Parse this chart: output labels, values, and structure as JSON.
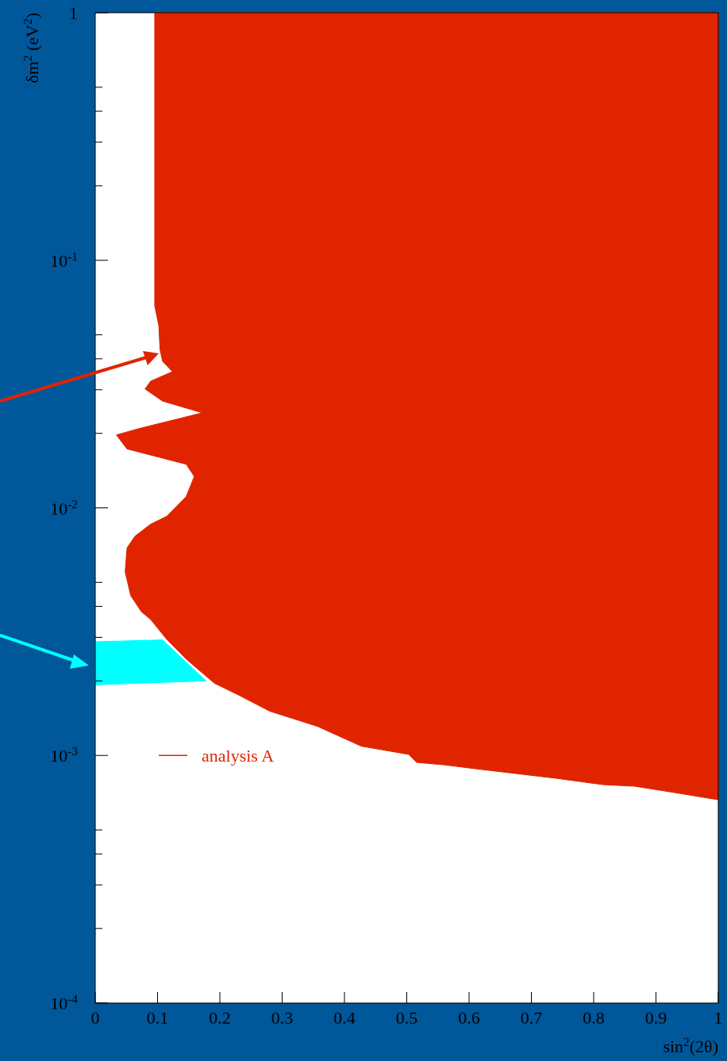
{
  "chart_data": {
    "type": "area",
    "xlabel": "sin$^{2}$(2θ)",
    "ylabel": "δm$^{2}$ (eV$^{2}$)",
    "log": "y",
    "xlim": [
      0,
      1
    ],
    "ylim": [
      0.0001,
      1
    ],
    "xticks": [
      0,
      0.1,
      0.2,
      0.3,
      0.4,
      0.5,
      0.6,
      0.7,
      0.8,
      0.9,
      1
    ],
    "yticks": [
      {
        "value": 0.0001,
        "label": "10$^{-4}$"
      },
      {
        "value": 0.0002,
        "label": null
      },
      {
        "value": 0.0003,
        "label": null
      },
      {
        "value": 0.0004,
        "label": null
      },
      {
        "value": 0.0005,
        "label": null
      },
      {
        "value": 0.001,
        "label": "10$^{-3}$"
      },
      {
        "value": 0.002,
        "label": null
      },
      {
        "value": 0.003,
        "label": null
      },
      {
        "value": 0.004,
        "label": null
      },
      {
        "value": 0.005,
        "label": null
      },
      {
        "value": 0.01,
        "label": "10$^{-2}$"
      },
      {
        "value": 0.02,
        "label": null
      },
      {
        "value": 0.03,
        "label": null
      },
      {
        "value": 0.04,
        "label": null
      },
      {
        "value": 0.05,
        "label": null
      },
      {
        "value": 0.1,
        "label": "10$^{-1}$"
      },
      {
        "value": 0.2,
        "label": null
      },
      {
        "value": 0.3,
        "label": null
      },
      {
        "value": 0.4,
        "label": null
      },
      {
        "value": 0.5,
        "label": null
      },
      1
    ],
    "grid": false,
    "legend": "left",
    "series": [
      {
        "color": "#00ffff",
        "x": [
          0,
          0.108,
          0.178,
          0
        ],
        "values": [
          0.00288,
          0.00293,
          0.002,
          0.00193
        ]
      },
      {
        "name": "analysis A",
        "color": "#e02400",
        "x": [
          0.0955,
          0.0955,
          0.102,
          0.104,
          0.108,
          0.124,
          0.089,
          0.08,
          0.108,
          0.172,
          0.07,
          0.034,
          0.051,
          0.146,
          0.159,
          0.146,
          0.115,
          0.089,
          0.064,
          0.051,
          0.048,
          0.057,
          0.074,
          0.089,
          0.115,
          0.146,
          0.191,
          0.229,
          0.28,
          0.357,
          0.427,
          0.503,
          0.516,
          0.561,
          0.611,
          0.739,
          0.815,
          0.866,
          0.93,
          1,
          1
        ],
        "values": [
          1,
          0.0655,
          0.0545,
          0.0436,
          0.0391,
          0.0355,
          0.0325,
          0.0302,
          0.027,
          0.0242,
          0.0209,
          0.0197,
          0.0173,
          0.015,
          0.0134,
          0.0111,
          0.00925,
          0.00859,
          0.00769,
          0.00689,
          0.00552,
          0.00442,
          0.00381,
          0.00354,
          0.00294,
          0.00245,
          0.00196,
          0.00176,
          0.00151,
          0.00131,
          0.00109,
          0.00101,
          0.000937,
          0.000916,
          0.000883,
          0.000809,
          0.000762,
          0.000751,
          0.000708,
          0.000662,
          1
        ]
      }
    ]
  }
}
